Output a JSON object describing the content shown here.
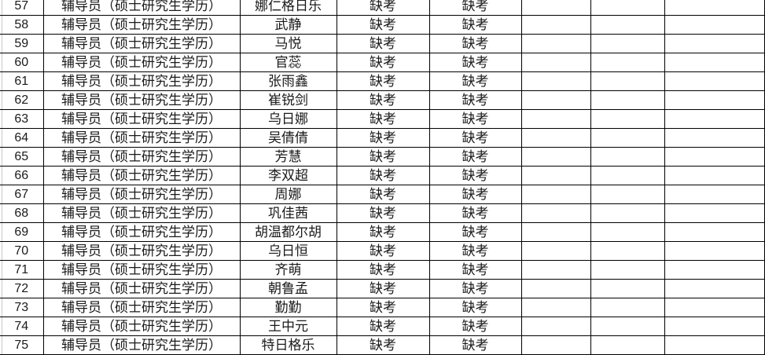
{
  "rows": [
    {
      "no": "57",
      "position": "辅导员（硕士研究生学历）",
      "name": "娜仁格日乐",
      "score1": "缺考",
      "score2": "缺考"
    },
    {
      "no": "58",
      "position": "辅导员（硕士研究生学历）",
      "name": "武静",
      "score1": "缺考",
      "score2": "缺考"
    },
    {
      "no": "59",
      "position": "辅导员（硕士研究生学历）",
      "name": "马悦",
      "score1": "缺考",
      "score2": "缺考"
    },
    {
      "no": "60",
      "position": "辅导员（硕士研究生学历）",
      "name": "官蕊",
      "score1": "缺考",
      "score2": "缺考"
    },
    {
      "no": "61",
      "position": "辅导员（硕士研究生学历）",
      "name": "张雨鑫",
      "score1": "缺考",
      "score2": "缺考"
    },
    {
      "no": "62",
      "position": "辅导员（硕士研究生学历）",
      "name": "崔锐剑",
      "score1": "缺考",
      "score2": "缺考"
    },
    {
      "no": "63",
      "position": "辅导员（硕士研究生学历）",
      "name": "乌日娜",
      "score1": "缺考",
      "score2": "缺考"
    },
    {
      "no": "64",
      "position": "辅导员（硕士研究生学历）",
      "name": "吴倩倩",
      "score1": "缺考",
      "score2": "缺考"
    },
    {
      "no": "65",
      "position": "辅导员（硕士研究生学历）",
      "name": "芳慧",
      "score1": "缺考",
      "score2": "缺考"
    },
    {
      "no": "66",
      "position": "辅导员（硕士研究生学历）",
      "name": "李双超",
      "score1": "缺考",
      "score2": "缺考"
    },
    {
      "no": "67",
      "position": "辅导员（硕士研究生学历）",
      "name": "周娜",
      "score1": "缺考",
      "score2": "缺考"
    },
    {
      "no": "68",
      "position": "辅导员（硕士研究生学历）",
      "name": "巩佳茜",
      "score1": "缺考",
      "score2": "缺考"
    },
    {
      "no": "69",
      "position": "辅导员（硕士研究生学历）",
      "name": "胡温都尔胡",
      "score1": "缺考",
      "score2": "缺考"
    },
    {
      "no": "70",
      "position": "辅导员（硕士研究生学历）",
      "name": "乌日恒",
      "score1": "缺考",
      "score2": "缺考"
    },
    {
      "no": "71",
      "position": "辅导员（硕士研究生学历）",
      "name": "齐萌",
      "score1": "缺考",
      "score2": "缺考"
    },
    {
      "no": "72",
      "position": "辅导员（硕士研究生学历）",
      "name": "朝鲁孟",
      "score1": "缺考",
      "score2": "缺考"
    },
    {
      "no": "73",
      "position": "辅导员（硕士研究生学历）",
      "name": "勤勤",
      "score1": "缺考",
      "score2": "缺考"
    },
    {
      "no": "74",
      "position": "辅导员（硕士研究生学历）",
      "name": "王中元",
      "score1": "缺考",
      "score2": "缺考"
    },
    {
      "no": "75",
      "position": "辅导员（硕士研究生学历）",
      "name": "特日格乐",
      "score1": "缺考",
      "score2": "缺考"
    }
  ]
}
